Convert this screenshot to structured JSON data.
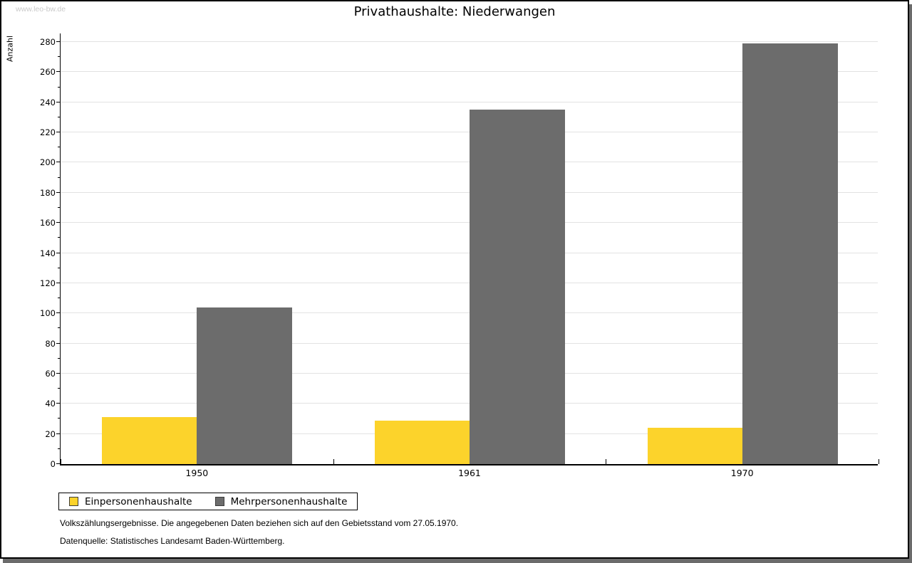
{
  "window": {
    "watermark": "www.leo-bw.de"
  },
  "chart_data": {
    "type": "bar",
    "title": "Privathaushalte: Niederwangen",
    "ylabel": "Anzahl",
    "xlabel": "",
    "categories": [
      "1950",
      "1961",
      "1970"
    ],
    "series": [
      {
        "name": "Einpersonenhaushalte",
        "color": "#FCD32B",
        "values": [
          31,
          29,
          24
        ]
      },
      {
        "name": "Mehrpersonenhaushalte",
        "color": "#6C6C6C",
        "values": [
          104,
          235,
          279
        ]
      }
    ],
    "ylim": [
      0,
      280
    ],
    "ytick_step": 20,
    "ytick_minor_step": 10,
    "grid": true,
    "legend_position": "bottom-left"
  },
  "footnotes": {
    "line1": "Volkszählungsergebnisse. Die angegebenen Daten beziehen sich auf den Gebietsstand vom 27.05.1970.",
    "line2": "Datenquelle: Statistisches Landesamt Baden-Württemberg."
  },
  "colors": {
    "grid": "#E2E2E2",
    "axis": "#000000",
    "shadow": "#6B6B6B",
    "watermark": "#C9C9C9"
  }
}
